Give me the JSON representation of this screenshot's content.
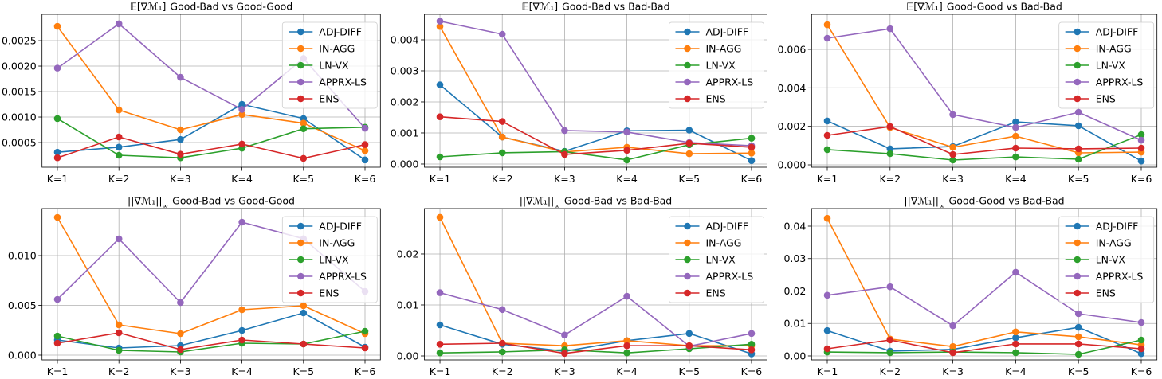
{
  "chart_data": [
    {
      "type": "line",
      "title_math": "𝔼[∇ℳ₁]",
      "title_text": "Good-Bad vs Good-Good",
      "categories": [
        "K=1",
        "K=2",
        "K=3",
        "K=4",
        "K=5",
        "K=6"
      ],
      "ylim": [
        1.6e-05,
        0.003016
      ],
      "yticks": [
        0.0005,
        0.001,
        0.0015,
        0.002,
        0.0025
      ],
      "ytick_labels": [
        "0.0005",
        "0.0010",
        "0.0015",
        "0.0020",
        "0.0025"
      ],
      "grid": true,
      "legend": "upper right",
      "series": [
        {
          "name": "ADJ-DIFF",
          "color": "#1f77b4",
          "values": [
            0.00031,
            0.00041,
            0.00056,
            0.00125,
            0.00097,
            0.00016
          ]
        },
        {
          "name": "IN-AGG",
          "color": "#ff7f0e",
          "values": [
            0.00278,
            0.00114,
            0.00075,
            0.00105,
            0.00088,
            0.00034
          ]
        },
        {
          "name": "LN-VX",
          "color": "#2ca02c",
          "values": [
            0.00097,
            0.00025,
            0.0002,
            0.00039,
            0.00077,
            0.0008
          ]
        },
        {
          "name": "APPRX-LS",
          "color": "#9467bd",
          "values": [
            0.00196,
            0.00283,
            0.00178,
            0.00115,
            0.00215,
            0.00078
          ]
        },
        {
          "name": "ENS",
          "color": "#d62728",
          "values": [
            0.0002,
            0.00061,
            0.00027,
            0.00047,
            0.00019,
            0.00046
          ]
        }
      ]
    },
    {
      "type": "line",
      "title_math": "𝔼[∇ℳ₁]",
      "title_text": "Good-Bad vs Bad-Bad",
      "categories": [
        "K=1",
        "K=2",
        "K=3",
        "K=4",
        "K=5",
        "K=6"
      ],
      "ylim": [
        -0.000103,
        0.00482
      ],
      "yticks": [
        0,
        0.001,
        0.002,
        0.003,
        0.004
      ],
      "ytick_labels": [
        "0.000",
        "0.001",
        "0.002",
        "0.003",
        "0.004"
      ],
      "grid": true,
      "legend": "upper right",
      "series": [
        {
          "name": "ADJ-DIFF",
          "color": "#1f77b4",
          "values": [
            0.00255,
            0.00087,
            0.00041,
            0.00107,
            0.00109,
            0.00011
          ]
        },
        {
          "name": "IN-AGG",
          "color": "#ff7f0e",
          "values": [
            0.00443,
            0.00087,
            0.00039,
            0.00054,
            0.00033,
            0.00035
          ]
        },
        {
          "name": "LN-VX",
          "color": "#2ca02c",
          "values": [
            0.00023,
            0.00036,
            0.0004,
            0.00013,
            0.00062,
            0.00083
          ]
        },
        {
          "name": "APPRX-LS",
          "color": "#9467bd",
          "values": [
            0.0046,
            0.00418,
            0.00108,
            0.00103,
            0.00069,
            0.00059
          ]
        },
        {
          "name": "ENS",
          "color": "#d62728",
          "values": [
            0.00152,
            0.00137,
            0.00031,
            0.00044,
            0.00067,
            0.00054
          ]
        }
      ]
    },
    {
      "type": "line",
      "title_math": "𝔼[∇ℳ₁]",
      "title_text": "Good-Good vs Bad-Bad",
      "categories": [
        "K=1",
        "K=2",
        "K=3",
        "K=4",
        "K=5",
        "K=6"
      ],
      "ylim": [
        -0.000124,
        0.00782
      ],
      "yticks": [
        0,
        0.002,
        0.004,
        0.006
      ],
      "ytick_labels": [
        "0.000",
        "0.002",
        "0.004",
        "0.006"
      ],
      "grid": true,
      "legend": "upper right",
      "series": [
        {
          "name": "ADJ-DIFF",
          "color": "#1f77b4",
          "values": [
            0.00228,
            0.00083,
            0.00095,
            0.00223,
            0.00203,
            0.0002
          ]
        },
        {
          "name": "IN-AGG",
          "color": "#ff7f0e",
          "values": [
            0.00728,
            0.00194,
            0.00091,
            0.00149,
            0.00062,
            0.00066
          ]
        },
        {
          "name": "LN-VX",
          "color": "#2ca02c",
          "values": [
            0.00079,
            0.00058,
            0.00025,
            0.00041,
            0.00029,
            0.00157
          ]
        },
        {
          "name": "APPRX-LS",
          "color": "#9467bd",
          "values": [
            0.00658,
            0.00707,
            0.00261,
            0.00194,
            0.00273,
            0.00128
          ]
        },
        {
          "name": "ENS",
          "color": "#d62728",
          "values": [
            0.00153,
            0.00199,
            0.00054,
            0.00087,
            0.00083,
            0.00087
          ]
        }
      ]
    },
    {
      "type": "line",
      "title_math": "||∇ℳ₁||",
      "title_sub": "∞",
      "title_text": "Good-Bad vs Good-Good",
      "categories": [
        "K=1",
        "K=2",
        "K=3",
        "K=4",
        "K=5",
        "K=6"
      ],
      "ylim": [
        -0.00048,
        0.01472
      ],
      "yticks": [
        0,
        0.005,
        0.01
      ],
      "ytick_labels": [
        "0.000",
        "0.005",
        "0.010"
      ],
      "grid": true,
      "legend": "upper right",
      "series": [
        {
          "name": "ADJ-DIFF",
          "color": "#1f77b4",
          "values": [
            0.00152,
            0.00072,
            0.00096,
            0.00248,
            0.00424,
            0.0008
          ]
        },
        {
          "name": "IN-AGG",
          "color": "#ff7f0e",
          "values": [
            0.01384,
            0.00304,
            0.00216,
            0.00456,
            0.00496,
            0.00216
          ]
        },
        {
          "name": "LN-VX",
          "color": "#2ca02c",
          "values": [
            0.00192,
            0.00048,
            0.00032,
            0.0012,
            0.00112,
            0.0024
          ]
        },
        {
          "name": "APPRX-LS",
          "color": "#9467bd",
          "values": [
            0.0056,
            0.01168,
            0.00528,
            0.01336,
            0.0117,
            0.0064
          ]
        },
        {
          "name": "ENS",
          "color": "#d62728",
          "values": [
            0.0012,
            0.00224,
            0.00056,
            0.00152,
            0.00112,
            0.00072
          ]
        }
      ]
    },
    {
      "type": "line",
      "title_math": "||∇ℳ₁||",
      "title_sub": "∞",
      "title_text": "Good-Bad vs Bad-Bad",
      "categories": [
        "K=1",
        "K=2",
        "K=3",
        "K=4",
        "K=5",
        "K=6"
      ],
      "ylim": [
        -0.00078,
        0.0289
      ],
      "yticks": [
        0,
        0.01,
        0.02
      ],
      "ytick_labels": [
        "0.00",
        "0.01",
        "0.02"
      ],
      "grid": true,
      "legend": "upper right",
      "series": [
        {
          "name": "ADJ-DIFF",
          "color": "#1f77b4",
          "values": [
            0.0061,
            0.0023,
            0.0009,
            0.003,
            0.0044,
            0.0004
          ]
        },
        {
          "name": "IN-AGG",
          "color": "#ff7f0e",
          "values": [
            0.0272,
            0.0025,
            0.002,
            0.003,
            0.002,
            0.002
          ]
        },
        {
          "name": "LN-VX",
          "color": "#2ca02c",
          "values": [
            0.0006,
            0.0008,
            0.0012,
            0.0006,
            0.0014,
            0.0023
          ]
        },
        {
          "name": "APPRX-LS",
          "color": "#9467bd",
          "values": [
            0.0124,
            0.0091,
            0.0041,
            0.0117,
            0.0019,
            0.0044
          ]
        },
        {
          "name": "ENS",
          "color": "#d62728",
          "values": [
            0.0023,
            0.0025,
            0.0005,
            0.002,
            0.002,
            0.0012
          ]
        }
      ]
    },
    {
      "type": "line",
      "title_math": "||∇ℳ₁||",
      "title_sub": "∞",
      "title_text": "Good-Good vs Bad-Bad",
      "categories": [
        "K=1",
        "K=2",
        "K=3",
        "K=4",
        "K=5",
        "K=6"
      ],
      "ylim": [
        -0.00123,
        0.0454
      ],
      "yticks": [
        0,
        0.01,
        0.02,
        0.03,
        0.04
      ],
      "ytick_labels": [
        "0.00",
        "0.01",
        "0.02",
        "0.03",
        "0.04"
      ],
      "grid": true,
      "legend": "upper right",
      "series": [
        {
          "name": "ADJ-DIFF",
          "color": "#1f77b4",
          "values": [
            0.0078,
            0.0015,
            0.002,
            0.0056,
            0.0088,
            0.0007
          ]
        },
        {
          "name": "IN-AGG",
          "color": "#ff7f0e",
          "values": [
            0.0424,
            0.0052,
            0.0029,
            0.0074,
            0.0059,
            0.0034
          ]
        },
        {
          "name": "LN-VX",
          "color": "#2ca02c",
          "values": [
            0.0012,
            0.001,
            0.0012,
            0.001,
            0.0005,
            0.0049
          ]
        },
        {
          "name": "APPRX-LS",
          "color": "#9467bd",
          "values": [
            0.0187,
            0.0213,
            0.0093,
            0.0258,
            0.013,
            0.0103
          ]
        },
        {
          "name": "ENS",
          "color": "#d62728",
          "values": [
            0.0022,
            0.0049,
            0.001,
            0.0037,
            0.0037,
            0.0022
          ]
        }
      ]
    }
  ]
}
